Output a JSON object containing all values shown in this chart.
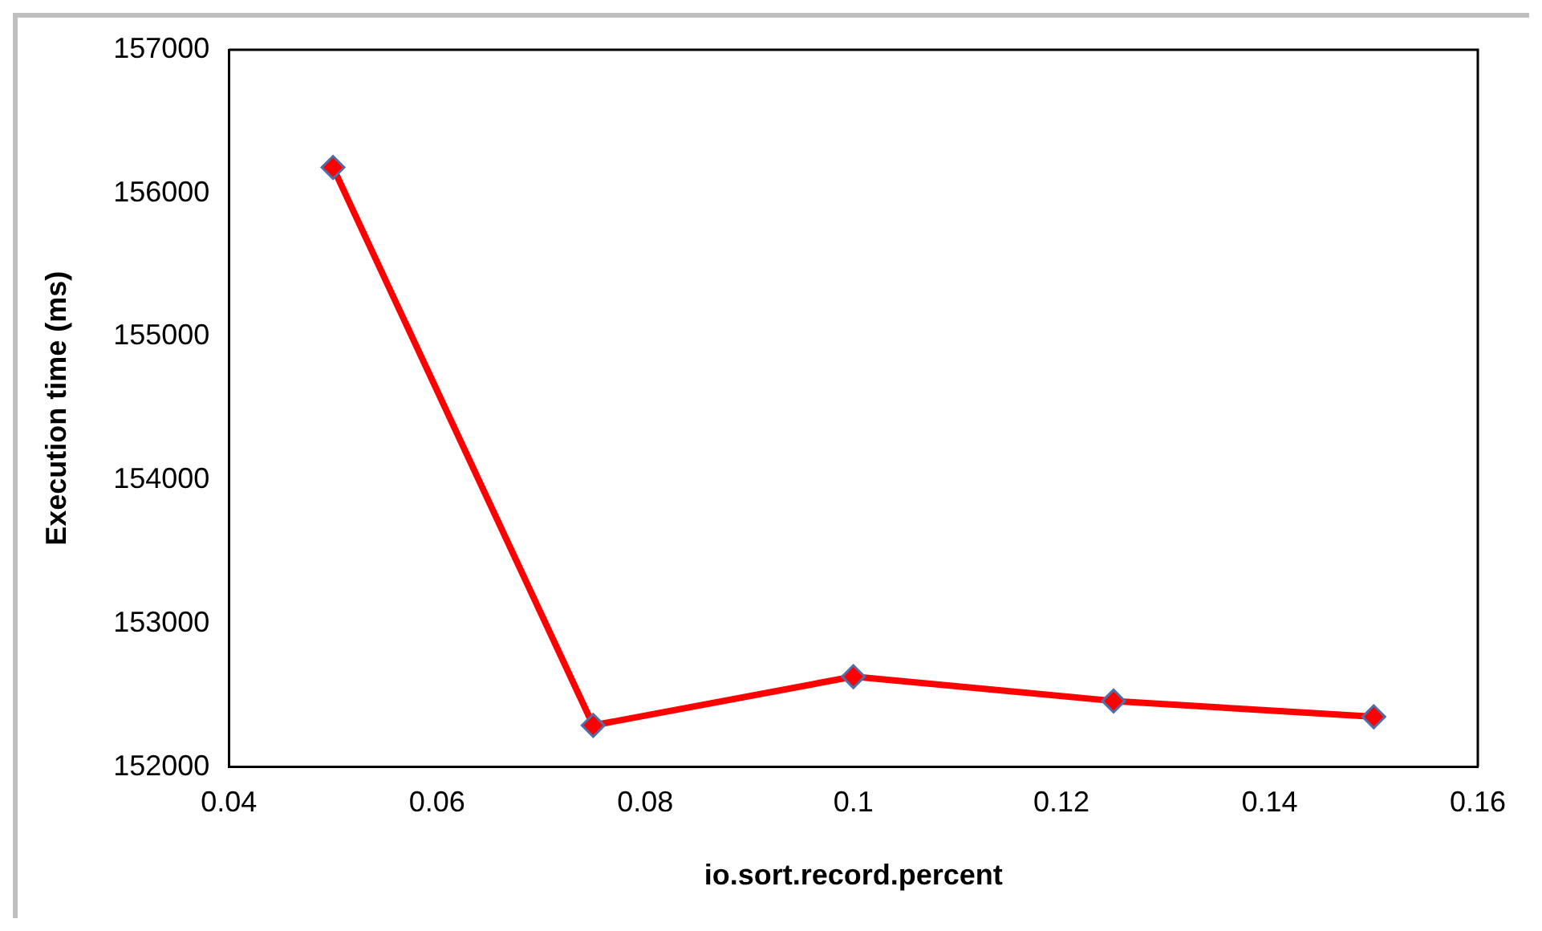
{
  "chart_data": {
    "type": "line",
    "xlabel": "io.sort.record.percent",
    "ylabel": "Execution time (ms)",
    "x": [
      0.05,
      0.075,
      0.1,
      0.125,
      0.15
    ],
    "series": [
      {
        "color": "#ff0000",
        "values": [
          156180,
          152290,
          152630,
          152460,
          152350
        ]
      }
    ],
    "xlim": [
      0.04,
      0.16
    ],
    "xticks": [
      0.04,
      0.06,
      0.08,
      0.1,
      0.12,
      0.14,
      0.16
    ],
    "ylim": [
      152000,
      157000
    ],
    "yticks": [
      152000,
      153000,
      154000,
      155000,
      156000,
      157000
    ],
    "grid": false,
    "legend": false,
    "marker": "diamond",
    "line_style": "solid"
  }
}
